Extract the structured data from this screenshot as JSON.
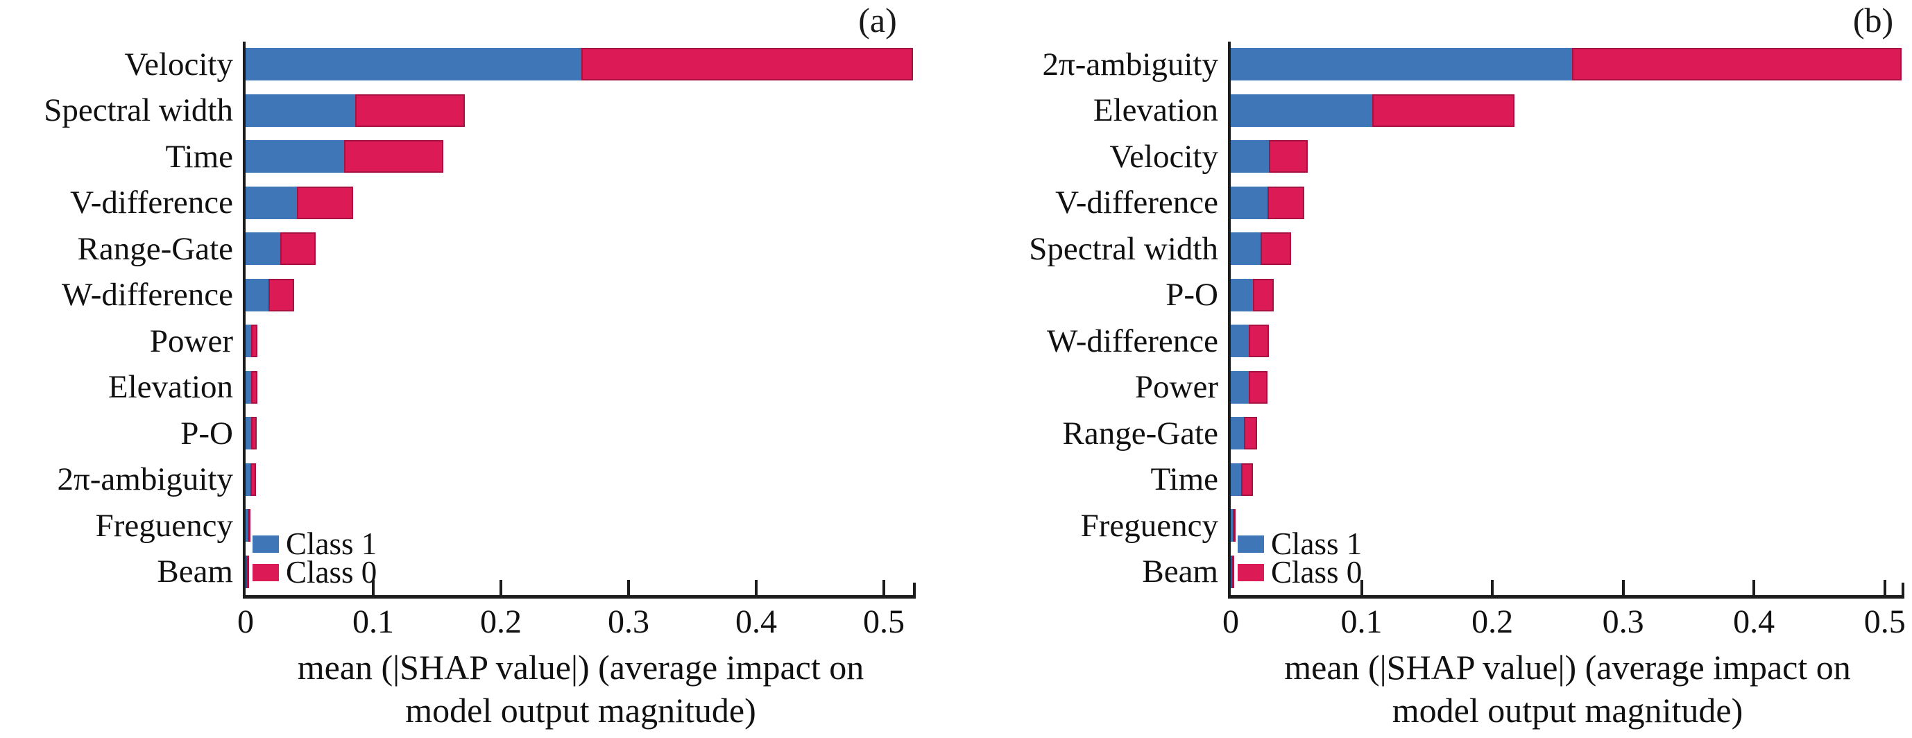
{
  "legend": {
    "class1": "Class 1",
    "class0": "Class 0"
  },
  "colors": {
    "class1_blue": "#3f76b7",
    "class0_red": "#dc1a55",
    "red_border": "#a81243",
    "axis": "#1c1c1c",
    "text": "#111111",
    "background": "#ffffff"
  },
  "chart_data": [
    {
      "type": "bar",
      "orientation": "horizontal-stacked",
      "title": "(a)",
      "categories": [
        "Velocity",
        "Spectral width",
        "Time",
        "V-difference",
        "Range-Gate",
        "W-difference",
        "Power",
        "Elevation",
        "P-O",
        "2π-ambiguity",
        "Freguency",
        "Beam"
      ],
      "series": [
        {
          "name": "Class 1",
          "color": "#3f76b7",
          "values": [
            0.263,
            0.086,
            0.077,
            0.04,
            0.027,
            0.018,
            0.0045,
            0.0045,
            0.0045,
            0.004,
            0.0018,
            0.0004
          ]
        },
        {
          "name": "Class 0",
          "color": "#dc1a55",
          "values": [
            0.26,
            0.086,
            0.078,
            0.044,
            0.028,
            0.02,
            0.005,
            0.0045,
            0.0043,
            0.004,
            0.0018,
            0.0004
          ]
        }
      ],
      "xlabel_line1": "mean (|SHAP value|) (average impact on",
      "xlabel_line2": "model output magnitude)",
      "ylabel": "",
      "xlim": [
        0,
        0.525
      ],
      "xticks": [
        {
          "value": 0,
          "label": "0"
        },
        {
          "value": 0.1,
          "label": "0.1"
        },
        {
          "value": 0.2,
          "label": "0.2"
        },
        {
          "value": 0.3,
          "label": "0.3"
        },
        {
          "value": 0.4,
          "label": "0.4"
        },
        {
          "value": 0.5,
          "label": "0.5"
        }
      ],
      "grid": false,
      "legend_position": "lower left"
    },
    {
      "type": "bar",
      "orientation": "horizontal-stacked",
      "title": "(b)",
      "categories": [
        "2π-ambiguity",
        "Elevation",
        "Velocity",
        "V-difference",
        "Spectral width",
        "P-O",
        "W-difference",
        "Power",
        "Range-Gate",
        "Time",
        "Freguency",
        "Beam"
      ],
      "series": [
        {
          "name": "Class 1",
          "color": "#3f76b7",
          "values": [
            0.261,
            0.108,
            0.029,
            0.028,
            0.023,
            0.017,
            0.014,
            0.014,
            0.01,
            0.008,
            0.0016,
            0.0004
          ]
        },
        {
          "name": "Class 0",
          "color": "#dc1a55",
          "values": [
            0.252,
            0.109,
            0.03,
            0.028,
            0.023,
            0.016,
            0.015,
            0.014,
            0.01,
            0.009,
            0.0016,
            0.0004
          ]
        }
      ],
      "xlabel_line1": "mean (|SHAP value|) (average impact on",
      "xlabel_line2": "model output magnitude)",
      "ylabel": "",
      "xlim": [
        0,
        0.515
      ],
      "xticks": [
        {
          "value": 0,
          "label": "0"
        },
        {
          "value": 0.1,
          "label": "0.1"
        },
        {
          "value": 0.2,
          "label": "0.2"
        },
        {
          "value": 0.3,
          "label": "0.3"
        },
        {
          "value": 0.4,
          "label": "0.4"
        },
        {
          "value": 0.5,
          "label": "0.5"
        }
      ],
      "grid": false,
      "legend_position": "lower left"
    }
  ]
}
